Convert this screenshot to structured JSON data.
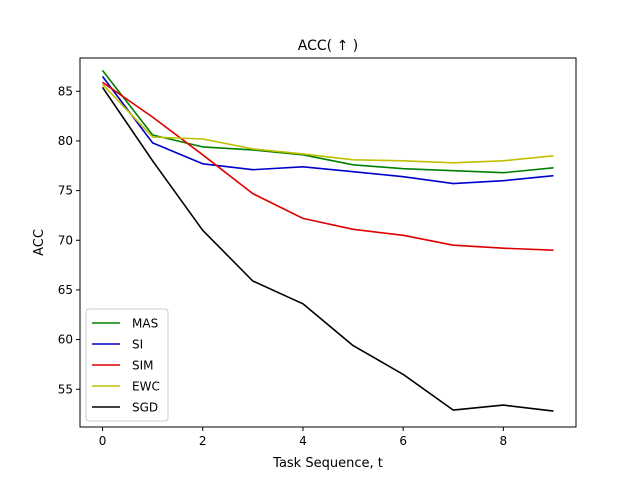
{
  "chart_data": {
    "type": "line",
    "title": "ACC( ↑ )",
    "xlabel": "Task Sequence, t",
    "ylabel": "ACC",
    "x": [
      0,
      1,
      2,
      3,
      4,
      5,
      6,
      7,
      8,
      9
    ],
    "xlim": [
      -0.45,
      9.45
    ],
    "ylim": [
      51.2,
      88.35
    ],
    "xticks": [
      0,
      2,
      4,
      6,
      8
    ],
    "yticks": [
      55,
      60,
      65,
      70,
      75,
      80,
      85
    ],
    "grid": false,
    "legend_position": "lower-left",
    "series": [
      {
        "name": "MAS",
        "color": "#008000",
        "values": [
          87.1,
          80.6,
          79.4,
          79.1,
          78.6,
          77.6,
          77.2,
          77.0,
          76.8,
          77.3
        ]
      },
      {
        "name": "SI",
        "color": "#0000cc",
        "values": [
          86.5,
          79.8,
          77.7,
          77.1,
          77.4,
          76.9,
          76.4,
          75.7,
          76.0,
          76.5
        ]
      },
      {
        "name": "SIM",
        "color": "#e00000",
        "values": [
          85.9,
          82.4,
          78.6,
          74.7,
          72.2,
          71.1,
          70.5,
          69.5,
          69.2,
          69.0
        ]
      },
      {
        "name": "EWC",
        "color": "#bfbf00",
        "values": [
          85.7,
          80.4,
          80.2,
          79.2,
          78.7,
          78.1,
          78.0,
          77.8,
          78.0,
          78.5
        ]
      },
      {
        "name": "SGD",
        "color": "#000000",
        "values": [
          85.4,
          78.0,
          71.0,
          65.9,
          63.6,
          59.4,
          56.5,
          52.9,
          53.4,
          52.8
        ]
      }
    ]
  }
}
